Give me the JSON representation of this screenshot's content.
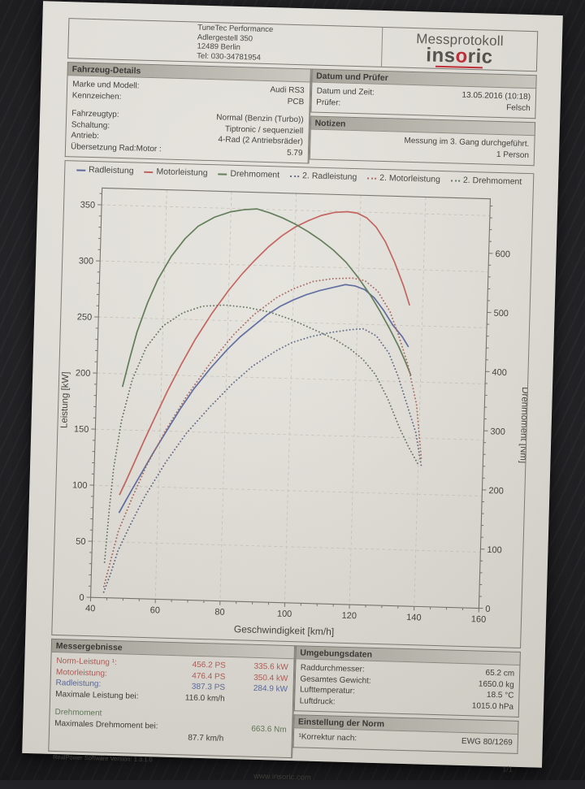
{
  "header": {
    "company_lines": [
      "TuneTec Performance",
      "Adlergestell 350",
      "12489 Berlin",
      "Tel: 030-34781954"
    ],
    "doc_title": "Messprotokoll",
    "brand_pre": "ins",
    "brand_o": "o",
    "brand_post": "ric",
    "brand_accent": "#c2232e"
  },
  "sections": {
    "vehicle": {
      "title": "Fahrzeug-Details",
      "rows": [
        {
          "label": "Marke und Modell:",
          "value": "Audi RS3"
        },
        {
          "label": "Kennzeichen:",
          "value": "PCB"
        },
        {
          "label": "Fahrzeugtyp:",
          "value": "Normal (Benzin (Turbo))"
        },
        {
          "label": "Schaltung:",
          "value": "Tiptronic / sequenziell"
        },
        {
          "label": "Antrieb:",
          "value": "4-Rad (2 Antriebsräder)"
        },
        {
          "label": "Übersetzung Rad:Motor :",
          "value": "5.79"
        }
      ]
    },
    "date": {
      "title": "Datum und Prüfer",
      "rows": [
        {
          "label": "Datum und Zeit:",
          "value": "13.05.2016 (10:18)"
        },
        {
          "label": "Prüfer:",
          "value": "Felsch"
        }
      ]
    },
    "notes": {
      "title": "Notizen",
      "lines": [
        "Messung im 3. Gang durchgeführt.",
        "1 Person"
      ]
    },
    "results": {
      "title": "Messergebnisse",
      "power_rows": [
        {
          "label": "Norm-Leistung ¹:",
          "ps": "456.2 PS",
          "kw": "335.6 kW",
          "color": "#ad5550"
        },
        {
          "label": "Motorleistung:",
          "ps": "476.4 PS",
          "kw": "350.4 kW",
          "color": "#ad5550"
        },
        {
          "label": "Radleistung:",
          "ps": "387.3 PS",
          "kw": "284.9 kW",
          "color": "#53639a"
        },
        {
          "label": "Maximale Leistung bei:",
          "ps": "116.0 km/h",
          "kw": "",
          "color": "#35342f"
        }
      ],
      "torque_heading": "Drehmoment",
      "torque_heading_color": "#5e7557",
      "torque_row": {
        "label": "Maximales Drehmoment bei:",
        "value_nm": "663.6 Nm",
        "value_speed": "87.7 km/h",
        "color": "#5e7557"
      }
    },
    "environment": {
      "title": "Umgebungsdaten",
      "rows": [
        {
          "label": "Raddurchmesser:",
          "value": "65.2 cm"
        },
        {
          "label": "Gesamtes Gewicht:",
          "value": "1650.0 kg"
        },
        {
          "label": "Lufttemperatur:",
          "value": "18.5 °C"
        },
        {
          "label": "Luftdruck:",
          "value": "1015.0 hPa"
        }
      ]
    },
    "norm": {
      "title": "Einstellung der Norm",
      "label": "¹Korrektur nach:",
      "value": "EWG 80/1269"
    }
  },
  "footer": {
    "software": "RealPower Software Version: 1.3.1.0",
    "page": "1/1",
    "website": "www.insoric.com"
  },
  "chart_data": {
    "type": "line",
    "xlabel": "Geschwindigkeit [km/h]",
    "ylabel_left": "Leistung [kW]",
    "ylabel_right": "Drehmoment [Nm]",
    "x_range": [
      40,
      160
    ],
    "x_ticks": [
      40,
      60,
      80,
      100,
      120,
      140,
      160
    ],
    "y_left_range": [
      0,
      365
    ],
    "y_left_ticks": [
      0,
      50,
      100,
      150,
      200,
      250,
      300,
      350
    ],
    "y_right_range": [
      0,
      692
    ],
    "y_right_ticks": [
      0,
      100,
      200,
      300,
      400,
      500,
      600
    ],
    "grid": true,
    "legend_position": "top",
    "series": [
      {
        "name": "Radleistung",
        "axis": "kW",
        "line": "solid",
        "color": "#55639b",
        "points": [
          [
            48,
            76
          ],
          [
            50,
            87
          ],
          [
            52,
            98
          ],
          [
            55,
            114
          ],
          [
            58,
            130
          ],
          [
            62,
            150
          ],
          [
            66,
            170
          ],
          [
            70,
            188
          ],
          [
            75,
            207
          ],
          [
            80,
            224
          ],
          [
            84,
            236
          ],
          [
            88,
            246
          ],
          [
            92,
            256
          ],
          [
            96,
            264
          ],
          [
            100,
            270
          ],
          [
            104,
            275
          ],
          [
            108,
            279
          ],
          [
            112,
            282
          ],
          [
            116,
            285
          ],
          [
            119,
            284
          ],
          [
            122,
            281
          ],
          [
            125,
            274
          ],
          [
            128,
            263
          ],
          [
            131,
            250
          ],
          [
            134,
            240
          ],
          [
            136,
            231
          ]
        ]
      },
      {
        "name": "Motorleistung",
        "axis": "kW",
        "line": "solid",
        "color": "#c25a55",
        "points": [
          [
            48,
            92
          ],
          [
            50,
            105
          ],
          [
            52,
            119
          ],
          [
            55,
            140
          ],
          [
            58,
            160
          ],
          [
            62,
            186
          ],
          [
            66,
            210
          ],
          [
            70,
            232
          ],
          [
            75,
            256
          ],
          [
            80,
            277
          ],
          [
            84,
            292
          ],
          [
            88,
            305
          ],
          [
            92,
            317
          ],
          [
            96,
            327
          ],
          [
            100,
            335
          ],
          [
            104,
            341
          ],
          [
            108,
            346
          ],
          [
            112,
            349
          ],
          [
            116,
            350
          ],
          [
            119,
            349
          ],
          [
            122,
            345
          ],
          [
            125,
            337
          ],
          [
            128,
            324
          ],
          [
            131,
            306
          ],
          [
            134,
            285
          ],
          [
            136,
            268
          ]
        ]
      },
      {
        "name": "Drehmoment",
        "axis": "Nm",
        "line": "solid",
        "color": "#58754f",
        "points": [
          [
            48,
            357
          ],
          [
            50,
            405
          ],
          [
            52,
            450
          ],
          [
            55,
            500
          ],
          [
            58,
            540
          ],
          [
            62,
            580
          ],
          [
            66,
            610
          ],
          [
            70,
            632
          ],
          [
            75,
            648
          ],
          [
            80,
            658
          ],
          [
            84,
            662
          ],
          [
            88,
            664
          ],
          [
            92,
            658
          ],
          [
            96,
            650
          ],
          [
            100,
            640
          ],
          [
            104,
            628
          ],
          [
            108,
            614
          ],
          [
            112,
            598
          ],
          [
            116,
            578
          ],
          [
            120,
            552
          ],
          [
            124,
            522
          ],
          [
            127,
            496
          ],
          [
            130,
            468
          ],
          [
            133,
            438
          ],
          [
            135,
            415
          ],
          [
            137,
            390
          ]
        ]
      },
      {
        "name": "2. Radleistung",
        "axis": "kW",
        "line": "dotted",
        "color": "#5c6582",
        "points": [
          [
            44,
            5
          ],
          [
            46,
            22
          ],
          [
            48,
            42
          ],
          [
            52,
            68
          ],
          [
            56,
            92
          ],
          [
            62,
            122
          ],
          [
            68,
            148
          ],
          [
            75,
            172
          ],
          [
            82,
            194
          ],
          [
            88,
            210
          ],
          [
            95,
            224
          ],
          [
            100,
            232
          ],
          [
            106,
            238
          ],
          [
            112,
            242
          ],
          [
            118,
            245
          ],
          [
            122,
            246
          ],
          [
            126,
            240
          ],
          [
            130,
            225
          ],
          [
            133,
            205
          ],
          [
            136,
            180
          ],
          [
            139,
            155
          ],
          [
            141,
            125
          ]
        ]
      },
      {
        "name": "2. Motorleistung",
        "axis": "kW",
        "line": "dotted",
        "color": "#a8625c",
        "points": [
          [
            44,
            10
          ],
          [
            46,
            35
          ],
          [
            48,
            60
          ],
          [
            52,
            90
          ],
          [
            56,
            118
          ],
          [
            62,
            152
          ],
          [
            68,
            182
          ],
          [
            75,
            212
          ],
          [
            82,
            238
          ],
          [
            88,
            256
          ],
          [
            95,
            272
          ],
          [
            100,
            280
          ],
          [
            106,
            287
          ],
          [
            112,
            290
          ],
          [
            118,
            291
          ],
          [
            122,
            289
          ],
          [
            126,
            280
          ],
          [
            130,
            262
          ],
          [
            133,
            240
          ],
          [
            136,
            215
          ],
          [
            139,
            180
          ],
          [
            141,
            130
          ]
        ]
      },
      {
        "name": "2. Drehmoment",
        "axis": "Nm",
        "line": "dotted",
        "color": "#60705a",
        "points": [
          [
            44,
            60
          ],
          [
            45,
            150
          ],
          [
            46,
            220
          ],
          [
            48,
            300
          ],
          [
            51,
            370
          ],
          [
            55,
            425
          ],
          [
            60,
            462
          ],
          [
            66,
            485
          ],
          [
            72,
            497
          ],
          [
            79,
            500
          ],
          [
            86,
            497
          ],
          [
            93,
            490
          ],
          [
            100,
            478
          ],
          [
            107,
            462
          ],
          [
            113,
            448
          ],
          [
            118,
            432
          ],
          [
            122,
            415
          ],
          [
            126,
            390
          ],
          [
            130,
            350
          ],
          [
            134,
            300
          ],
          [
            137,
            268
          ],
          [
            140,
            240
          ]
        ]
      }
    ]
  }
}
